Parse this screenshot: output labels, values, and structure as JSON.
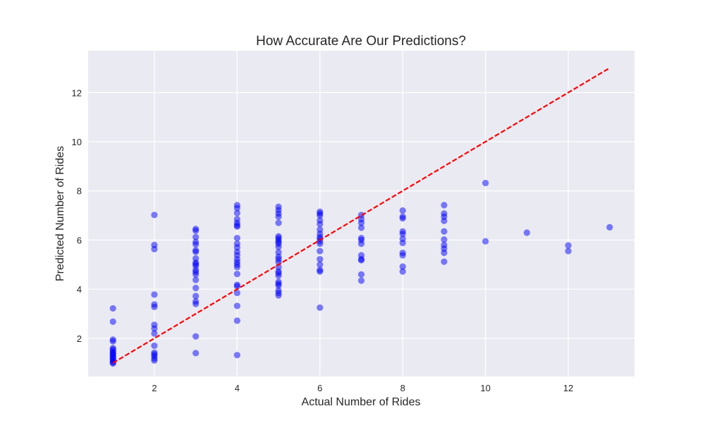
{
  "chart_data": {
    "type": "scatter",
    "title": "How Accurate Are Our Predictions?",
    "xlabel": "Actual Number of Rides",
    "ylabel": "Predicted Number of Rides",
    "xlim": [
      0.4,
      13.6
    ],
    "ylim": [
      0.45,
      13.7
    ],
    "xticks": [
      2,
      4,
      6,
      8,
      10,
      12
    ],
    "yticks": [
      2,
      4,
      6,
      8,
      10,
      12
    ],
    "grid": true,
    "colors": {
      "background": "#eaeaf2",
      "grid": "#ffffff",
      "points": "#0000ff",
      "reference_line": "#ff0000"
    },
    "reference_line": {
      "x": [
        1,
        13
      ],
      "y": [
        1,
        13
      ],
      "style": "dashed"
    },
    "points": [
      {
        "x": 1,
        "y": 3.22
      },
      {
        "x": 1,
        "y": 2.68
      },
      {
        "x": 1,
        "y": 1.95
      },
      {
        "x": 1,
        "y": 1.88
      },
      {
        "x": 1,
        "y": 1.6
      },
      {
        "x": 1,
        "y": 1.55
      },
      {
        "x": 1,
        "y": 1.48
      },
      {
        "x": 1,
        "y": 1.42
      },
      {
        "x": 1,
        "y": 1.38
      },
      {
        "x": 1,
        "y": 1.33
      },
      {
        "x": 1,
        "y": 1.28
      },
      {
        "x": 1,
        "y": 1.22
      },
      {
        "x": 1,
        "y": 1.18
      },
      {
        "x": 1,
        "y": 1.12
      },
      {
        "x": 1,
        "y": 1.07
      },
      {
        "x": 1,
        "y": 1.02
      },
      {
        "x": 1,
        "y": 0.98
      },
      {
        "x": 2,
        "y": 7.02
      },
      {
        "x": 2,
        "y": 5.8
      },
      {
        "x": 2,
        "y": 5.63
      },
      {
        "x": 2,
        "y": 3.78
      },
      {
        "x": 2,
        "y": 3.38
      },
      {
        "x": 2,
        "y": 3.28
      },
      {
        "x": 2,
        "y": 2.55
      },
      {
        "x": 2,
        "y": 2.4
      },
      {
        "x": 2,
        "y": 2.2
      },
      {
        "x": 2,
        "y": 1.7
      },
      {
        "x": 2,
        "y": 1.42
      },
      {
        "x": 2,
        "y": 1.35
      },
      {
        "x": 2,
        "y": 1.28
      },
      {
        "x": 2,
        "y": 1.18
      },
      {
        "x": 2,
        "y": 1.1
      },
      {
        "x": 3,
        "y": 6.45
      },
      {
        "x": 3,
        "y": 6.38
      },
      {
        "x": 3,
        "y": 6.12
      },
      {
        "x": 3,
        "y": 5.92
      },
      {
        "x": 3,
        "y": 5.82
      },
      {
        "x": 3,
        "y": 5.58
      },
      {
        "x": 3,
        "y": 5.52
      },
      {
        "x": 3,
        "y": 5.25
      },
      {
        "x": 3,
        "y": 5.08
      },
      {
        "x": 3,
        "y": 5.02
      },
      {
        "x": 3,
        "y": 4.95
      },
      {
        "x": 3,
        "y": 4.78
      },
      {
        "x": 3,
        "y": 4.7
      },
      {
        "x": 3,
        "y": 4.6
      },
      {
        "x": 3,
        "y": 4.38
      },
      {
        "x": 3,
        "y": 4.05
      },
      {
        "x": 3,
        "y": 3.72
      },
      {
        "x": 3,
        "y": 3.5
      },
      {
        "x": 3,
        "y": 3.4
      },
      {
        "x": 3,
        "y": 2.08
      },
      {
        "x": 3,
        "y": 1.4
      },
      {
        "x": 4,
        "y": 7.42
      },
      {
        "x": 4,
        "y": 7.3
      },
      {
        "x": 4,
        "y": 7.1
      },
      {
        "x": 4,
        "y": 6.85
      },
      {
        "x": 4,
        "y": 6.7
      },
      {
        "x": 4,
        "y": 6.6
      },
      {
        "x": 4,
        "y": 6.55
      },
      {
        "x": 4,
        "y": 6.08
      },
      {
        "x": 4,
        "y": 5.85
      },
      {
        "x": 4,
        "y": 5.7
      },
      {
        "x": 4,
        "y": 5.52
      },
      {
        "x": 4,
        "y": 5.38
      },
      {
        "x": 4,
        "y": 5.22
      },
      {
        "x": 4,
        "y": 5.1
      },
      {
        "x": 4,
        "y": 5.0
      },
      {
        "x": 4,
        "y": 4.9
      },
      {
        "x": 4,
        "y": 4.62
      },
      {
        "x": 4,
        "y": 4.18
      },
      {
        "x": 4,
        "y": 4.12
      },
      {
        "x": 4,
        "y": 3.85
      },
      {
        "x": 4,
        "y": 3.32
      },
      {
        "x": 4,
        "y": 2.72
      },
      {
        "x": 4,
        "y": 1.32
      },
      {
        "x": 5,
        "y": 7.35
      },
      {
        "x": 5,
        "y": 7.22
      },
      {
        "x": 5,
        "y": 7.08
      },
      {
        "x": 5,
        "y": 6.95
      },
      {
        "x": 5,
        "y": 6.7
      },
      {
        "x": 5,
        "y": 6.15
      },
      {
        "x": 5,
        "y": 6.08
      },
      {
        "x": 5,
        "y": 6.0
      },
      {
        "x": 5,
        "y": 5.92
      },
      {
        "x": 5,
        "y": 5.85
      },
      {
        "x": 5,
        "y": 5.72
      },
      {
        "x": 5,
        "y": 5.5
      },
      {
        "x": 5,
        "y": 5.32
      },
      {
        "x": 5,
        "y": 5.22
      },
      {
        "x": 5,
        "y": 5.1
      },
      {
        "x": 5,
        "y": 4.9
      },
      {
        "x": 5,
        "y": 4.72
      },
      {
        "x": 5,
        "y": 4.65
      },
      {
        "x": 5,
        "y": 4.55
      },
      {
        "x": 5,
        "y": 4.3
      },
      {
        "x": 5,
        "y": 4.22
      },
      {
        "x": 5,
        "y": 4.15
      },
      {
        "x": 5,
        "y": 3.95
      },
      {
        "x": 5,
        "y": 3.85
      },
      {
        "x": 5,
        "y": 3.75
      },
      {
        "x": 6,
        "y": 7.15
      },
      {
        "x": 6,
        "y": 7.08
      },
      {
        "x": 6,
        "y": 7.0
      },
      {
        "x": 6,
        "y": 6.8
      },
      {
        "x": 6,
        "y": 6.65
      },
      {
        "x": 6,
        "y": 6.42
      },
      {
        "x": 6,
        "y": 6.25
      },
      {
        "x": 6,
        "y": 6.12
      },
      {
        "x": 6,
        "y": 6.05
      },
      {
        "x": 6,
        "y": 5.95
      },
      {
        "x": 6,
        "y": 5.85
      },
      {
        "x": 6,
        "y": 5.55
      },
      {
        "x": 6,
        "y": 5.22
      },
      {
        "x": 6,
        "y": 5.0
      },
      {
        "x": 6,
        "y": 4.78
      },
      {
        "x": 6,
        "y": 4.72
      },
      {
        "x": 6,
        "y": 3.25
      },
      {
        "x": 7,
        "y": 7.02
      },
      {
        "x": 7,
        "y": 6.85
      },
      {
        "x": 7,
        "y": 6.7
      },
      {
        "x": 7,
        "y": 6.5
      },
      {
        "x": 7,
        "y": 6.08
      },
      {
        "x": 7,
        "y": 6.0
      },
      {
        "x": 7,
        "y": 5.85
      },
      {
        "x": 7,
        "y": 5.38
      },
      {
        "x": 7,
        "y": 5.22
      },
      {
        "x": 7,
        "y": 5.18
      },
      {
        "x": 7,
        "y": 4.6
      },
      {
        "x": 7,
        "y": 4.35
      },
      {
        "x": 8,
        "y": 7.2
      },
      {
        "x": 8,
        "y": 6.95
      },
      {
        "x": 8,
        "y": 6.88
      },
      {
        "x": 8,
        "y": 6.35
      },
      {
        "x": 8,
        "y": 6.25
      },
      {
        "x": 8,
        "y": 6.05
      },
      {
        "x": 8,
        "y": 5.88
      },
      {
        "x": 8,
        "y": 5.48
      },
      {
        "x": 8,
        "y": 5.38
      },
      {
        "x": 8,
        "y": 4.92
      },
      {
        "x": 8,
        "y": 4.72
      },
      {
        "x": 9,
        "y": 7.42
      },
      {
        "x": 9,
        "y": 7.08
      },
      {
        "x": 9,
        "y": 6.95
      },
      {
        "x": 9,
        "y": 6.78
      },
      {
        "x": 9,
        "y": 6.35
      },
      {
        "x": 9,
        "y": 6.02
      },
      {
        "x": 9,
        "y": 5.8
      },
      {
        "x": 9,
        "y": 5.65
      },
      {
        "x": 9,
        "y": 5.48
      },
      {
        "x": 9,
        "y": 5.12
      },
      {
        "x": 10,
        "y": 8.32
      },
      {
        "x": 10,
        "y": 5.95
      },
      {
        "x": 11,
        "y": 6.3
      },
      {
        "x": 12,
        "y": 5.78
      },
      {
        "x": 12,
        "y": 5.55
      },
      {
        "x": 13,
        "y": 6.52
      }
    ]
  }
}
